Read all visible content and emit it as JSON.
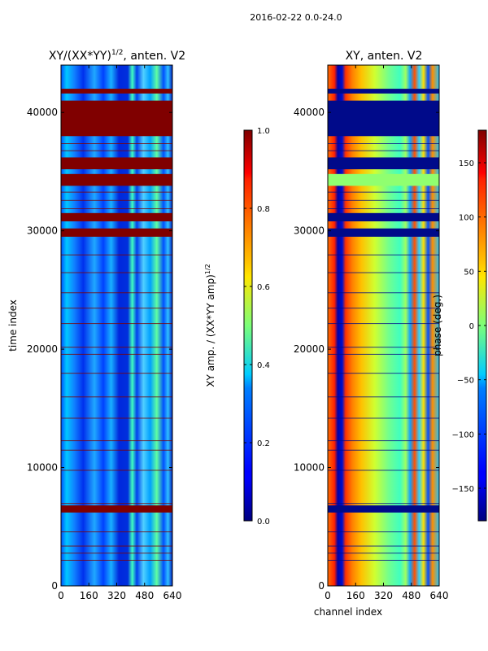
{
  "figure": {
    "suptitle": "2016-02-22 0.0-24.0"
  },
  "chart_data": [
    {
      "type": "heatmap",
      "title_main": "XY/(XX*YY)",
      "title_sup": "1/2",
      "title_tail": ", anten. V2",
      "xlabel": "",
      "ylabel": "time index",
      "xlim": [
        0,
        640
      ],
      "ylim": [
        0,
        44000
      ],
      "xticks": [
        0,
        160,
        320,
        480,
        640
      ],
      "yticks": [
        0,
        10000,
        20000,
        30000,
        40000
      ],
      "colorbar": {
        "label_main": "XY amp. / (XX*YY amp)",
        "label_sup": "1/2",
        "range": [
          0.0,
          1.0
        ],
        "ticks": [
          "0.0",
          "0.2",
          "0.4",
          "0.6",
          "0.8",
          "1.0"
        ],
        "tick_values": [
          0.0,
          0.2,
          0.4,
          0.6,
          0.8,
          1.0
        ]
      },
      "saturated_bands": [
        [
          6200,
          6800
        ],
        [
          29500,
          30200
        ],
        [
          30800,
          31500
        ],
        [
          33800,
          34800
        ],
        [
          35200,
          36200
        ],
        [
          38000,
          41000
        ],
        [
          41600,
          42000
        ]
      ],
      "missing_bands": []
    },
    {
      "type": "heatmap",
      "title": "XY, anten. V2",
      "xlabel": "channel index",
      "ylabel": "",
      "xlim": [
        0,
        640
      ],
      "ylim": [
        0,
        44000
      ],
      "xticks": [
        0,
        160,
        320,
        480,
        640
      ],
      "yticks": [
        0,
        10000,
        20000,
        30000,
        40000
      ],
      "colorbar": {
        "label": "phase (deg.)",
        "range": [
          -180,
          180
        ],
        "ticks": [
          "150",
          "100",
          "50",
          "0",
          "−50",
          "−100",
          "−150"
        ],
        "tick_values": [
          150,
          100,
          50,
          0,
          -50,
          -100,
          -150
        ]
      },
      "saturated_bands": [
        [
          6200,
          6800
        ],
        [
          29500,
          30200
        ],
        [
          30800,
          31500
        ],
        [
          35200,
          36200
        ],
        [
          38000,
          41000
        ],
        [
          41600,
          42000
        ]
      ],
      "missing_bands": [
        [
          33800,
          34800
        ]
      ]
    }
  ]
}
